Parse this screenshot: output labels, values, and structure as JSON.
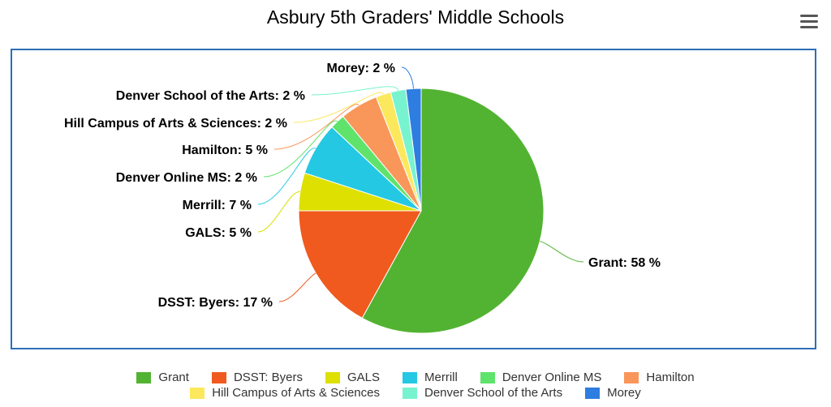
{
  "title": "Asbury 5th Graders' Middle Schools",
  "menu_icon": "hamburger-menu-icon",
  "chart_data": {
    "type": "pie",
    "title": "Asbury 5th Graders' Middle Schools",
    "unit": "%",
    "slices": [
      {
        "name": "Grant",
        "value": 58,
        "color": "#52b332"
      },
      {
        "name": "DSST: Byers",
        "value": 17,
        "color": "#f05a1e"
      },
      {
        "name": "GALS",
        "value": 5,
        "color": "#dde000"
      },
      {
        "name": "Merrill",
        "value": 7,
        "color": "#25c8e2"
      },
      {
        "name": "Denver Online MS",
        "value": 2,
        "color": "#5fe36b"
      },
      {
        "name": "Hamilton",
        "value": 5,
        "color": "#f9965a"
      },
      {
        "name": "Hill Campus of Arts & Sciences",
        "value": 2,
        "color": "#fce85d"
      },
      {
        "name": "Denver School of the Arts",
        "value": 2,
        "color": "#78f3cf"
      },
      {
        "name": "Morey",
        "value": 2,
        "color": "#2e7de0"
      }
    ],
    "data_labels": [
      "Grant: 58 %",
      "DSST: Byers: 17 %",
      "GALS: 5 %",
      "Merrill: 7 %",
      "Denver Online MS: 2 %",
      "Hamilton: 5 %",
      "Hill Campus of Arts & Sciences: 2 %",
      "Denver School of the Arts: 2 %",
      "Morey: 2 %"
    ],
    "legend_position": "bottom"
  }
}
